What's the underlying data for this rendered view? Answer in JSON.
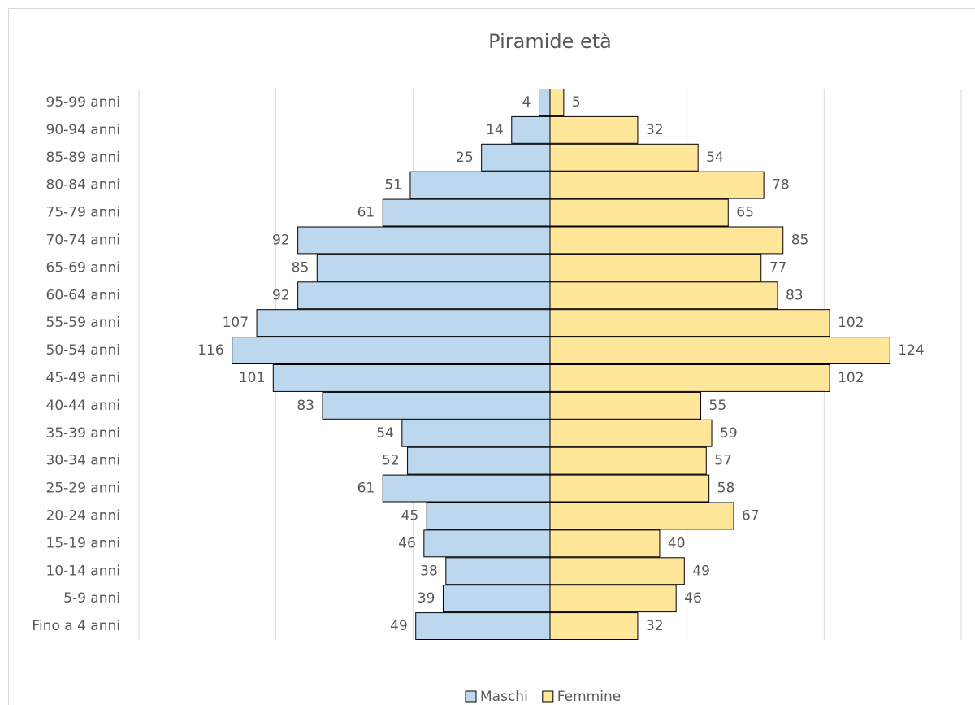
{
  "chart_data": {
    "type": "pyramid",
    "title": "Piramide età",
    "categories": [
      "Fino a 4 anni",
      "5-9 anni",
      "10-14 anni",
      "15-19 anni",
      "20-24 anni",
      "25-29 anni",
      "30-34 anni",
      "35-39 anni",
      "40-44 anni",
      "45-49 anni",
      "50-54 anni",
      "55-59 anni",
      "60-64 anni",
      "65-69 anni",
      "70-74 anni",
      "75-79 anni",
      "80-84 anni",
      "85-89 anni",
      "90-94 anni",
      "95-99 anni"
    ],
    "series": [
      {
        "name": "Maschi",
        "color": "#bdd7ee",
        "side": "left",
        "values": [
          49,
          39,
          38,
          46,
          45,
          61,
          52,
          54,
          83,
          101,
          116,
          107,
          92,
          85,
          92,
          61,
          51,
          25,
          14,
          4
        ]
      },
      {
        "name": "Femmine",
        "color": "#ffe699",
        "side": "right",
        "values": [
          32,
          46,
          49,
          40,
          67,
          58,
          57,
          59,
          55,
          102,
          124,
          102,
          83,
          77,
          85,
          65,
          78,
          54,
          32,
          5
        ]
      }
    ],
    "xlim": [
      -150,
      150
    ],
    "xticks": [
      -150,
      -100,
      -50,
      0,
      50,
      100,
      150
    ],
    "tick_labels": false,
    "grid": true,
    "legend": "bottom"
  }
}
